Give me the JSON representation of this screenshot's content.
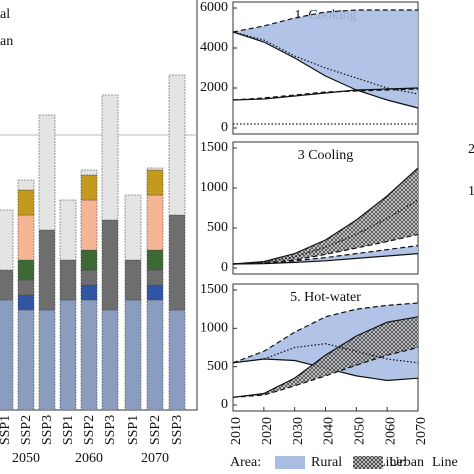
{
  "legend": {
    "area_label": "Area:",
    "items": [
      {
        "name": "Rural",
        "color": "#a9bde3"
      },
      {
        "name": "Urban",
        "fill": "hatch"
      }
    ],
    "line_label": "Line:",
    "line_cut": "Line"
  },
  "fragments": [
    "2",
    "1"
  ],
  "chart_data": [
    {
      "type": "stacked_bar",
      "legend": [
        "al",
        "an"
      ],
      "categories": [
        "SSP1",
        "SSP2",
        "SSP3",
        "SSP1",
        "SSP2",
        "SSP3",
        "SSP1",
        "SSP2",
        "SSP3"
      ],
      "groups": [
        "2050",
        "2060",
        "2070"
      ],
      "ylim": [
        0,
        400
      ],
      "series": [
        {
          "color": "#8a9dbf",
          "values": [
            110,
            100,
            100,
            110,
            110,
            100,
            110,
            110,
            100
          ]
        },
        {
          "color": "#2f55a4",
          "values": [
            0,
            15,
            0,
            0,
            15,
            0,
            0,
            15,
            0
          ]
        },
        {
          "color": "#6e6e6e",
          "values": [
            30,
            15,
            80,
            40,
            15,
            90,
            40,
            15,
            95
          ]
        },
        {
          "color": "#3d6a34",
          "values": [
            0,
            20,
            0,
            0,
            20,
            0,
            0,
            20,
            0
          ]
        },
        {
          "color": "#f6b595",
          "values": [
            0,
            45,
            0,
            0,
            50,
            0,
            0,
            55,
            0
          ]
        },
        {
          "color": "#c39a1d",
          "values": [
            0,
            25,
            0,
            0,
            25,
            0,
            0,
            25,
            0
          ]
        },
        {
          "color": "#e4e4e4",
          "values": [
            60,
            10,
            115,
            60,
            5,
            125,
            65,
            2,
            140
          ]
        }
      ]
    },
    {
      "type": "band_line",
      "title": "1. Cooking",
      "x": [
        2010,
        2020,
        2030,
        2040,
        2050,
        2060,
        2070
      ],
      "xlim": [
        2010,
        2070
      ],
      "ylim": [
        0,
        6000
      ],
      "yticks": [
        0,
        2000,
        4000,
        6000
      ],
      "bands": [
        {
          "fill": "#a9bde3",
          "upper": [
            4800,
            5100,
            5500,
            5800,
            5900,
            5900,
            5900
          ],
          "lower": [
            4800,
            4300,
            3500,
            2600,
            1900,
            1400,
            1000
          ],
          "upper_style": "dashed",
          "lower_style": "solid"
        }
      ],
      "series": [
        {
          "line_style": "solid",
          "values": [
            1400,
            1450,
            1600,
            1750,
            1900,
            1950,
            2000
          ]
        },
        {
          "line_style": "dashed",
          "values": [
            1400,
            1500,
            1650,
            1800,
            1850,
            1900,
            1950
          ]
        },
        {
          "line_style": "dotted",
          "values": [
            4800,
            4400,
            3600,
            3000,
            2500,
            2000,
            1700
          ]
        },
        {
          "line_style": "dotted",
          "values": [
            200,
            200,
            200,
            200,
            200,
            200,
            200
          ]
        }
      ]
    },
    {
      "type": "band_line",
      "title": "3 Cooling",
      "x": [
        2010,
        2020,
        2030,
        2040,
        2050,
        2060,
        2070
      ],
      "xlim": [
        2010,
        2070
      ],
      "ylim": [
        0,
        1500
      ],
      "yticks": [
        0,
        500,
        1000,
        1500
      ],
      "bands": [
        {
          "fill": "hatch",
          "upper": [
            50,
            80,
            180,
            350,
            600,
            900,
            1250
          ],
          "lower": [
            50,
            60,
            100,
            170,
            250,
            330,
            420
          ],
          "upper_style": "solid",
          "lower_style": "dashed"
        },
        {
          "fill": "#a9bde3",
          "upper": [
            50,
            60,
            90,
            130,
            180,
            230,
            280
          ],
          "lower": [
            50,
            55,
            70,
            90,
            120,
            150,
            180
          ],
          "upper_style": "dashed",
          "lower_style": "solid"
        }
      ],
      "series": [
        {
          "line_style": "dotted",
          "values": [
            50,
            70,
            140,
            260,
            420,
            620,
            850
          ]
        }
      ]
    },
    {
      "type": "band_line",
      "title": "5. Hot-water",
      "x": [
        2010,
        2020,
        2030,
        2040,
        2050,
        2060,
        2070
      ],
      "xlim": [
        2010,
        2070
      ],
      "xticks": [
        2010,
        2020,
        2030,
        2040,
        2050,
        2060,
        2070
      ],
      "ylim": [
        0,
        1500
      ],
      "yticks": [
        0,
        500,
        1000,
        1500
      ],
      "bands": [
        {
          "fill": "#a9bde3",
          "upper": [
            550,
            700,
            950,
            1150,
            1250,
            1300,
            1330
          ],
          "lower": [
            550,
            600,
            580,
            480,
            380,
            320,
            350
          ],
          "upper_style": "dashed",
          "lower_style": "solid"
        },
        {
          "fill": "hatch",
          "upper": [
            100,
            150,
            350,
            650,
            900,
            1080,
            1150
          ],
          "lower": [
            100,
            130,
            250,
            380,
            520,
            650,
            750
          ],
          "upper_style": "solid",
          "lower_style": "dashed"
        }
      ],
      "series": [
        {
          "line_style": "dotted",
          "values": [
            550,
            600,
            750,
            800,
            700,
            600,
            550
          ]
        }
      ]
    }
  ]
}
